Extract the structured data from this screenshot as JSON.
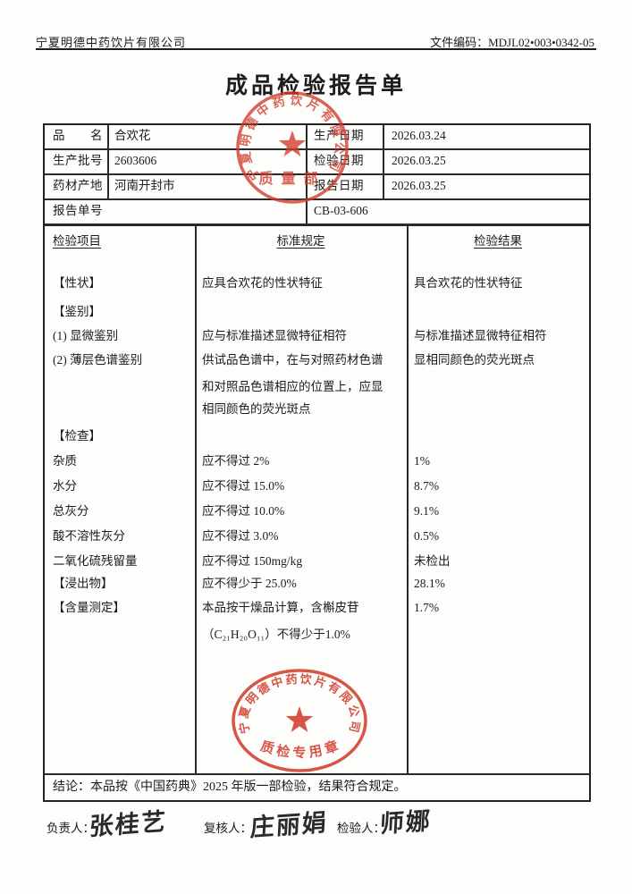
{
  "header": {
    "company": "宁夏明德中药饮片有限公司",
    "doc_code": "文件编码：MDJL02•003•0342-05"
  },
  "title": "成品检验报告单",
  "info": {
    "rows": [
      {
        "l1": "品　　名",
        "v1": "合欢花",
        "l2": "生产日期",
        "v2": "2026.03.24"
      },
      {
        "l1": "生产批号",
        "v1": "2603606",
        "l2": "检验日期",
        "v2": "2026.03.25"
      },
      {
        "l1": "药材产地",
        "v1": "河南开封市",
        "l2": "报告日期",
        "v2": "2026.03.25"
      }
    ],
    "report_no_label": "报告单号",
    "report_no": "CB-03-606"
  },
  "main": {
    "headers": [
      "检验项目",
      "标准规定",
      "检验结果"
    ],
    "lines": [
      {
        "c1": "【性状】",
        "c2": "应具合欢花的性状特征",
        "c3": "具合欢花的性状特征"
      },
      {
        "c1": "【鉴别】"
      },
      {
        "c1": "(1) 显微鉴别",
        "c2": "应与标准描述显微特征相符",
        "c3": "与标准描述显微特征相符"
      },
      {
        "c1": "(2) 薄层色谱鉴别",
        "c2": "供试品色谱中，在与对照药材色谱",
        "c3": "显相同颜色的荧光斑点"
      },
      {
        "c2": "和对照品色谱相应的位置上，应显"
      },
      {
        "c2": "相同颜色的荧光斑点"
      },
      {
        "c1": "【检查】"
      },
      {
        "c1": "杂质",
        "c2": "应不得过 2%",
        "c3": "1%"
      },
      {
        "c1": "水分",
        "c2": "应不得过 15.0%",
        "c3": "8.7%"
      },
      {
        "c1": "总灰分",
        "c2": "应不得过 10.0%",
        "c3": "9.1%"
      },
      {
        "c1": "酸不溶性灰分",
        "c2": "应不得过 3.0%",
        "c3": "0.5%"
      },
      {
        "c1": "二氧化硫残留量",
        "c2": "应不得过 150mg/kg",
        "c3": "未检出"
      },
      {
        "c1": "【浸出物】",
        "c2": "应不得少于 25.0%",
        "c3": "28.1%"
      },
      {
        "c1": "【含量测定】",
        "c2": "本品按干燥品计算，含槲皮苷",
        "c3": "1.7%"
      },
      {
        "c2": "（C₂₁H₂₀O₁₁）不得少于1.0%"
      }
    ]
  },
  "conclusion": "结论：本品按《中国药典》2025 年版一部检验，结果符合规定。",
  "signatures": {
    "resp_label": "负责人：",
    "resp_name": "张桂艺",
    "review_label": "复核人：",
    "review_name": "庄丽娟",
    "inspect_label": "检验人：",
    "inspect_name": "师娜"
  },
  "stamps": {
    "ring_text": "宁夏明德中药饮片有限公司",
    "top_caption": "质量部",
    "bottom_caption": "质检专用章",
    "red": "#d03a2a"
  }
}
